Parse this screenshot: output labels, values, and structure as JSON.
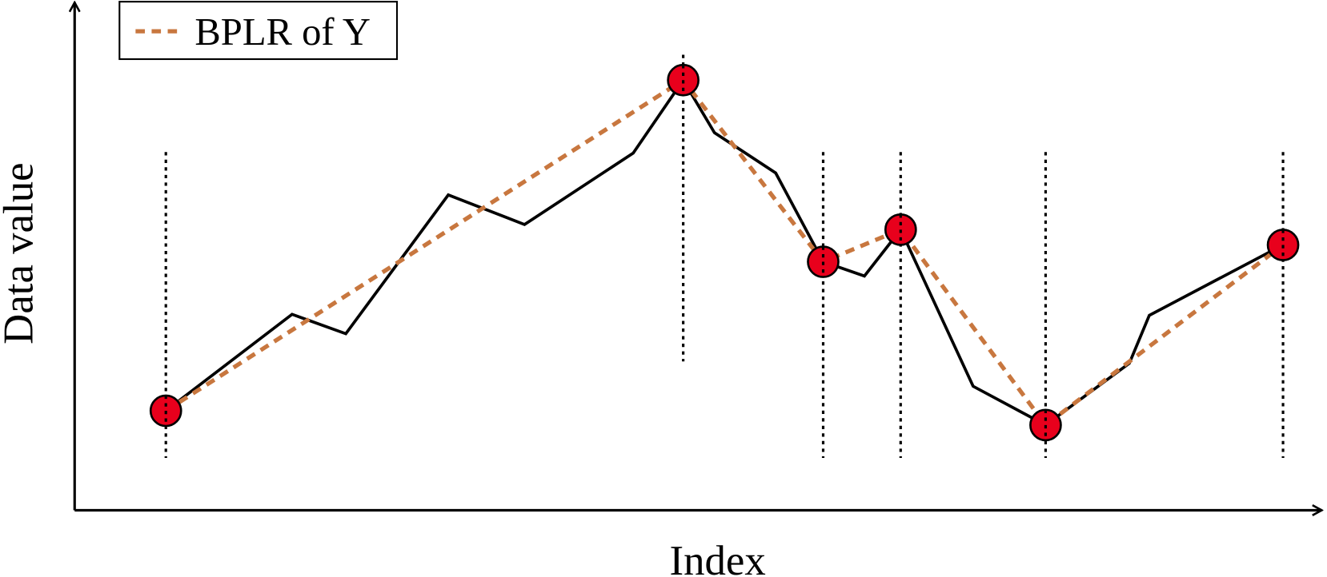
{
  "chart_data": {
    "type": "line",
    "x_label": "Index",
    "y_label": "Data value",
    "xlim": [
      0,
      100
    ],
    "ylim": [
      0,
      100
    ],
    "legend": "upper left",
    "series": [
      {
        "color": "#000000",
        "x": [
          7.3,
          17.4,
          21.7,
          29.9,
          36.0,
          44.7,
          48.7,
          51.2,
          56.1,
          59.9,
          63.2,
          66.1,
          71.9,
          77.7,
          84.4,
          86.0,
          96.7
        ],
        "values": [
          19.5,
          38.4,
          34.6,
          61.8,
          56.0,
          70.0,
          84.3,
          74.0,
          66.1,
          48.7,
          45.9,
          55.0,
          24.3,
          16.7,
          28.8,
          38.2,
          52.0
        ]
      },
      {
        "name": "BPLR of Y",
        "color": "#c8773f",
        "dashed": true,
        "marker_color": "#e8001c",
        "x": [
          7.3,
          48.7,
          59.9,
          66.1,
          77.7,
          96.7
        ],
        "values": [
          19.5,
          84.3,
          48.7,
          55.0,
          16.7,
          52.0
        ]
      }
    ]
  }
}
